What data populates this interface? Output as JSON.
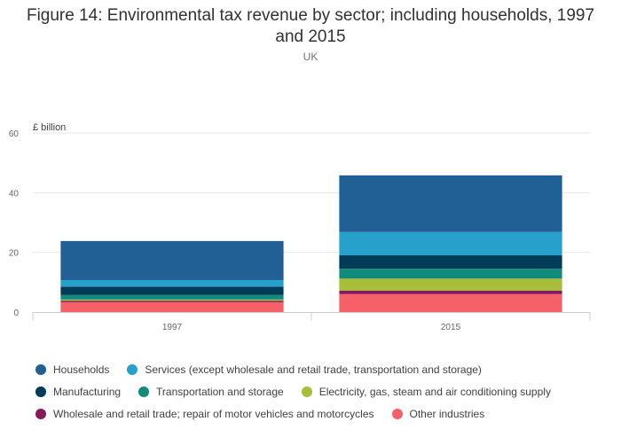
{
  "chart_data": {
    "type": "bar",
    "stacked": true,
    "title": "Figure 14: Environmental tax revenue by sector; including households, 1997 and 2015",
    "subtitle": "UK",
    "ylabel": "£ billion",
    "xlabel": "",
    "ylim": [
      0,
      60
    ],
    "yticks": [
      0,
      20,
      40,
      60
    ],
    "grid": true,
    "legend_position": "bottom",
    "categories": [
      "1997",
      "2015"
    ],
    "series": [
      {
        "name": "Other industries",
        "color": "#f66068",
        "values": [
          3.3,
          6.0
        ]
      },
      {
        "name": "Wholesale and retail trade; repair of motor vehicles and motorcycles",
        "color": "#871a5b",
        "values": [
          0.5,
          1.2
        ]
      },
      {
        "name": "Electricity, gas, steam and air conditioning supply",
        "color": "#a8bd3a",
        "values": [
          0.4,
          4.0
        ]
      },
      {
        "name": "Transportation and storage",
        "color": "#118c7b",
        "values": [
          1.5,
          3.3
        ]
      },
      {
        "name": "Manufacturing",
        "color": "#003c57",
        "values": [
          2.8,
          4.5
        ]
      },
      {
        "name": "Services (except wholesale and retail trade, transportation and storage)",
        "color": "#27a0cc",
        "values": [
          2.2,
          7.8
        ]
      },
      {
        "name": "Households",
        "color": "#206095",
        "values": [
          13.1,
          19.0
        ]
      }
    ]
  },
  "legend_rows": [
    [
      {
        "label": "Households",
        "color": "#206095"
      },
      {
        "label": "Services (except wholesale and retail trade, transportation and storage)",
        "color": "#27a0cc"
      }
    ],
    [
      {
        "label": "Manufacturing",
        "color": "#003c57"
      },
      {
        "label": "Transportation and storage",
        "color": "#118c7b"
      },
      {
        "label": "Electricity, gas, steam and air conditioning supply",
        "color": "#a8bd3a"
      }
    ],
    [
      {
        "label": "Wholesale and retail trade; repair of motor vehicles and motorcycles",
        "color": "#871a5b"
      },
      {
        "label": "Other industries",
        "color": "#f66068"
      }
    ]
  ]
}
